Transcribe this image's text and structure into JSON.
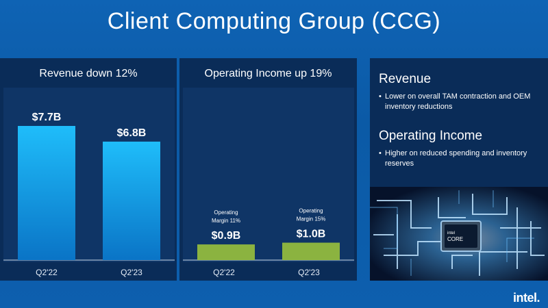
{
  "page": {
    "title": "Client Computing Group (CCG)"
  },
  "colors": {
    "revenue_bar_top": "#1fbdfa",
    "revenue_bar_bottom": "#0a74c6",
    "oi_bar": "#8bb340",
    "panel": "#0a2c58"
  },
  "chart_data": [
    {
      "type": "bar",
      "title": "Revenue down 12%",
      "categories": [
        "Q2'22",
        "Q2'23"
      ],
      "values": [
        7.7,
        6.8
      ],
      "data_labels": [
        "$7.7B",
        "$6.8B"
      ],
      "unit": "$B",
      "ylim": [
        0,
        9.0
      ]
    },
    {
      "type": "bar",
      "title": "Operating Income up 19%",
      "categories": [
        "Q2'22",
        "Q2'23"
      ],
      "values": [
        0.9,
        1.0
      ],
      "data_labels": [
        "$0.9B",
        "$1.0B"
      ],
      "annotations": [
        [
          "Operating",
          "Margin 11%"
        ],
        [
          "Operating",
          "Margin 15%"
        ]
      ],
      "unit": "$B",
      "ylim": [
        0,
        9.0
      ]
    }
  ],
  "commentary": {
    "revenue_heading": "Revenue",
    "revenue_bullet": "Lower on overall TAM contraction and OEM inventory reductions",
    "oi_heading": "Operating Income",
    "oi_bullet": "Higher on reduced spending and inventory reserves"
  },
  "chip_image": {
    "line1": "intel",
    "line2": "CORE"
  },
  "logo": {
    "text": "intel."
  }
}
